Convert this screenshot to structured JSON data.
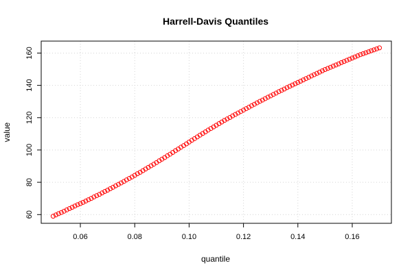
{
  "chart_data": {
    "type": "scatter",
    "title": "Harrell-Davis Quantiles",
    "xlabel": "quantile",
    "ylabel": "value",
    "xlim": [
      0.0456,
      0.1744
    ],
    "ylim": [
      54.6,
      167.4
    ],
    "xticks": [
      0.06,
      0.08,
      0.1,
      0.12,
      0.14,
      0.16
    ],
    "xtick_labels": [
      "0.06",
      "0.08",
      "0.10",
      "0.12",
      "0.14",
      "0.16"
    ],
    "yticks": [
      60,
      80,
      100,
      120,
      140,
      160
    ],
    "ytick_labels": [
      "60",
      "80",
      "100",
      "120",
      "140",
      "160"
    ],
    "grid": true,
    "marker": "open-circle",
    "color": "#ff0000",
    "series": [
      {
        "x": [
          0.05,
          0.051,
          0.052,
          0.053,
          0.054,
          0.055,
          0.056,
          0.057,
          0.058,
          0.059,
          0.06,
          0.061,
          0.062,
          0.063,
          0.064,
          0.065,
          0.066,
          0.067,
          0.068,
          0.069,
          0.07,
          0.071,
          0.072,
          0.073,
          0.074,
          0.075,
          0.076,
          0.077,
          0.078,
          0.079,
          0.08,
          0.081,
          0.082,
          0.083,
          0.084,
          0.085,
          0.086,
          0.087,
          0.088,
          0.089,
          0.09,
          0.091,
          0.092,
          0.093,
          0.094,
          0.095,
          0.096,
          0.097,
          0.098,
          0.099,
          0.1,
          0.101,
          0.102,
          0.103,
          0.104,
          0.105,
          0.106,
          0.107,
          0.108,
          0.109,
          0.11,
          0.111,
          0.112,
          0.113,
          0.114,
          0.115,
          0.116,
          0.117,
          0.118,
          0.119,
          0.12,
          0.121,
          0.122,
          0.123,
          0.124,
          0.125,
          0.126,
          0.127,
          0.128,
          0.129,
          0.13,
          0.131,
          0.132,
          0.133,
          0.134,
          0.135,
          0.136,
          0.137,
          0.138,
          0.139,
          0.14,
          0.141,
          0.142,
          0.143,
          0.144,
          0.145,
          0.146,
          0.147,
          0.148,
          0.149,
          0.15,
          0.151,
          0.152,
          0.153,
          0.154,
          0.155,
          0.156,
          0.157,
          0.158,
          0.159,
          0.16,
          0.161,
          0.162,
          0.163,
          0.164,
          0.165,
          0.166,
          0.167,
          0.168,
          0.169,
          0.17
        ],
        "y": [
          59.0,
          59.8,
          60.6,
          61.3,
          62.1,
          62.9,
          63.7,
          64.5,
          65.3,
          66.1,
          66.8,
          67.6,
          68.4,
          69.2,
          70.0,
          70.9,
          71.7,
          72.5,
          73.4,
          74.3,
          75.1,
          76.0,
          76.9,
          77.8,
          78.7,
          79.6,
          80.5,
          81.5,
          82.4,
          83.3,
          84.3,
          85.3,
          86.2,
          87.2,
          88.2,
          89.2,
          90.2,
          91.2,
          92.2,
          93.3,
          94.3,
          95.3,
          96.4,
          97.4,
          98.5,
          99.6,
          100.6,
          101.7,
          102.7,
          103.8,
          104.9,
          106.0,
          107.0,
          108.1,
          109.2,
          110.2,
          111.2,
          112.3,
          113.3,
          114.3,
          115.3,
          116.3,
          117.3,
          118.3,
          119.2,
          120.1,
          121.1,
          122.0,
          122.9,
          123.8,
          124.7,
          125.6,
          126.5,
          127.4,
          128.3,
          129.2,
          130.1,
          130.9,
          131.8,
          132.7,
          133.5,
          134.4,
          135.2,
          136.1,
          136.9,
          137.7,
          138.6,
          139.4,
          140.2,
          141.0,
          141.8,
          142.6,
          143.4,
          144.2,
          145.0,
          145.8,
          146.6,
          147.4,
          148.2,
          149.0,
          149.8,
          150.5,
          151.2,
          151.9,
          152.6,
          153.3,
          154.1,
          154.8,
          155.5,
          156.2,
          156.9,
          157.6,
          158.3,
          159.0,
          159.6,
          160.2,
          160.8,
          161.4,
          162.0,
          162.6,
          163.2
        ]
      }
    ]
  }
}
